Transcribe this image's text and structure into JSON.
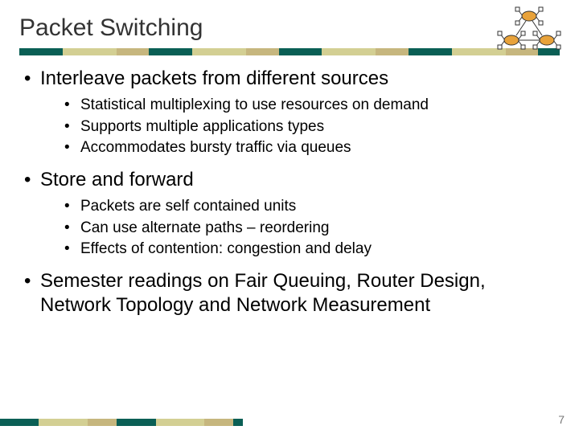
{
  "title": "Packet Switching",
  "page_number": "7",
  "stripe_colors": [
    "#0a5f55",
    "#d3cf93",
    "#d3cf93",
    "#c6b67e",
    "#0a5f55",
    "#d3cf93",
    "#d3cf93",
    "#c6b67e",
    "#0a5f55",
    "#d3cf93",
    "#d3cf93",
    "#c6b67e",
    "#0a5f55",
    "#d3cf93",
    "#d3cf93",
    "#c6b67e",
    "#0a5f55"
  ],
  "stripe_widths": [
    "8%",
    "5%",
    "5%",
    "6%",
    "8%",
    "5%",
    "5%",
    "6%",
    "8%",
    "5%",
    "5%",
    "6%",
    "8%",
    "5%",
    "5%",
    "6%",
    "4%"
  ],
  "footer_stripe_colors": [
    "#0a5f55",
    "#d3cf93",
    "#d3cf93",
    "#c6b67e",
    "#0a5f55",
    "#d3cf93",
    "#d3cf93",
    "#c6b67e",
    "#0a5f55"
  ],
  "footer_stripe_widths": [
    "16%",
    "10%",
    "10%",
    "12%",
    "16%",
    "10%",
    "10%",
    "12%",
    "4%"
  ],
  "diagram": {
    "node_fill": "#e8a23a",
    "node_stroke": "#333333",
    "box_fill": "#ffffff",
    "box_stroke": "#333333",
    "line_stroke": "#333333"
  },
  "bullets": [
    {
      "text": "Interleave packets from different sources",
      "sub": [
        "Statistical multiplexing to use resources on demand",
        "Supports multiple applications types",
        "Accommodates bursty traffic via queues"
      ]
    },
    {
      "text": "Store and forward",
      "sub": [
        "Packets are self contained units",
        "Can use alternate paths – reordering",
        "Effects of contention: congestion and delay"
      ]
    },
    {
      "text": "Semester readings on Fair Queuing, Router Design, Network Topology and Network Measurement",
      "sub": []
    }
  ]
}
